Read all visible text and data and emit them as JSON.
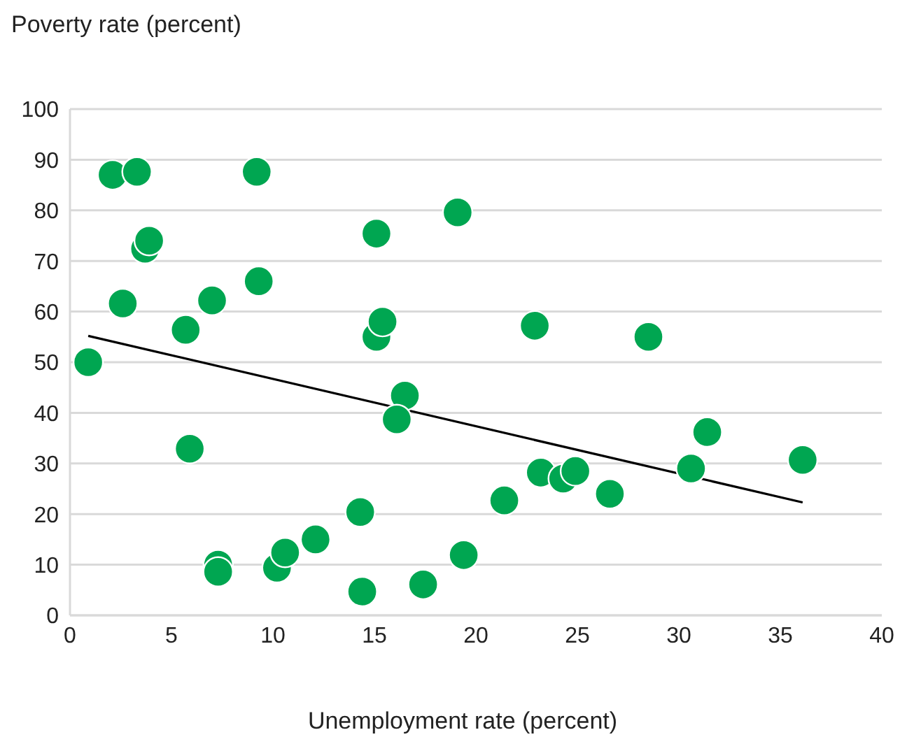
{
  "chart_data": {
    "type": "scatter",
    "xlabel": "Unemployment rate (percent)",
    "ylabel": "Poverty rate (percent)",
    "xlim": [
      0,
      40
    ],
    "xticks": [
      0,
      5,
      10,
      15,
      20,
      25,
      30,
      35,
      40
    ],
    "ylim": [
      0,
      100
    ],
    "yticks": [
      0,
      10,
      20,
      30,
      40,
      50,
      60,
      70,
      80,
      90,
      100
    ],
    "grid": "y",
    "marker": "circle",
    "series": [
      {
        "color": "#00a651",
        "x": [
          0.9,
          2.1,
          3.3,
          2.6,
          3.7,
          3.9,
          5.7,
          5.9,
          7.0,
          7.3,
          7.3,
          9.2,
          9.3,
          10.2,
          10.6,
          12.1,
          14.3,
          14.4,
          15.1,
          15.1,
          15.4,
          16.5,
          16.1,
          17.4,
          19.1,
          19.4,
          21.4,
          22.9,
          23.2,
          24.3,
          24.9,
          26.6,
          28.5,
          30.6,
          31.4,
          36.1
        ],
        "values": [
          50,
          87,
          87.6,
          61.6,
          72.4,
          74,
          56.4,
          32.9,
          62.2,
          10,
          8.6,
          87.6,
          66,
          9.4,
          12.4,
          15,
          20.4,
          4.7,
          75.4,
          55,
          58,
          43.4,
          38.7,
          6.1,
          79.6,
          11.9,
          22.7,
          57.2,
          28.2,
          27,
          28.5,
          24,
          55,
          29,
          36.2,
          30.7
        ]
      },
      {
        "type": "line",
        "color": "#000000",
        "marker": "none",
        "x": [
          0.9,
          36.1
        ],
        "values": [
          55.2,
          22.3
        ]
      }
    ]
  }
}
